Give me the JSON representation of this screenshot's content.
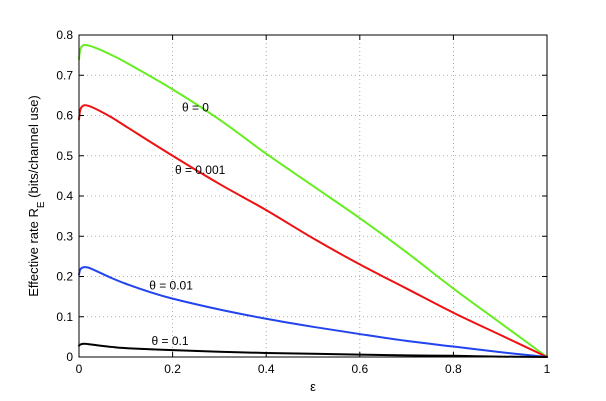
{
  "chart_data": {
    "type": "line",
    "title": "",
    "xlabel": "ε",
    "ylabel_main": "Effective rate R",
    "ylabel_sub": "E",
    "ylabel_tail": " (bits/channel use)",
    "xlim": [
      0,
      1
    ],
    "ylim": [
      0,
      0.8
    ],
    "xticks": [
      0,
      0.2,
      0.4,
      0.6,
      0.8,
      1
    ],
    "xtick_labels": [
      "0",
      "0.2",
      "0.4",
      "0.6",
      "0.8",
      "1"
    ],
    "yticks": [
      0,
      0.1,
      0.2,
      0.3,
      0.4,
      0.5,
      0.6,
      0.7,
      0.8
    ],
    "ytick_labels": [
      "0",
      "0.1",
      "0.2",
      "0.3",
      "0.4",
      "0.5",
      "0.6",
      "0.7",
      "0.8"
    ],
    "grid": true,
    "series": [
      {
        "label": "θ = 0",
        "color": "#66ee22",
        "x": [
          0,
          0.003,
          0.01,
          0.02,
          0.04,
          0.07,
          0.1,
          0.2,
          0.3,
          0.4,
          0.5,
          0.6,
          0.7,
          0.8,
          0.9,
          1.0
        ],
        "y": [
          0.74,
          0.765,
          0.775,
          0.774,
          0.766,
          0.75,
          0.732,
          0.665,
          0.59,
          0.505,
          0.425,
          0.345,
          0.26,
          0.17,
          0.085,
          0
        ]
      },
      {
        "label": "θ = 0.001",
        "color": "#ee1111",
        "x": [
          0,
          0.003,
          0.01,
          0.02,
          0.04,
          0.07,
          0.1,
          0.2,
          0.3,
          0.4,
          0.5,
          0.6,
          0.7,
          0.8,
          0.9,
          1.0
        ],
        "y": [
          0.59,
          0.615,
          0.625,
          0.624,
          0.614,
          0.595,
          0.573,
          0.5,
          0.43,
          0.365,
          0.295,
          0.23,
          0.17,
          0.11,
          0.055,
          0
        ]
      },
      {
        "label": "θ = 0.01",
        "color": "#2244ee",
        "x": [
          0,
          0.003,
          0.01,
          0.02,
          0.04,
          0.07,
          0.1,
          0.15,
          0.2,
          0.3,
          0.4,
          0.5,
          0.6,
          0.7,
          0.8,
          0.9,
          1.0
        ],
        "y": [
          0.205,
          0.218,
          0.223,
          0.222,
          0.212,
          0.196,
          0.182,
          0.162,
          0.145,
          0.118,
          0.095,
          0.075,
          0.057,
          0.04,
          0.026,
          0.012,
          0
        ]
      },
      {
        "label": "θ = 0.1",
        "color": "#000000",
        "x": [
          0,
          0.003,
          0.01,
          0.02,
          0.04,
          0.07,
          0.1,
          0.2,
          0.3,
          0.4,
          0.5,
          0.6,
          0.7,
          0.8,
          0.9,
          1.0
        ],
        "y": [
          0.028,
          0.031,
          0.033,
          0.032,
          0.029,
          0.025,
          0.022,
          0.017,
          0.013,
          0.01,
          0.008,
          0.006,
          0.004,
          0.003,
          0.001,
          0
        ]
      }
    ],
    "annotations": [
      {
        "text": "θ = 0",
        "x": 0.22,
        "y": 0.61
      },
      {
        "text": "θ = 0.001",
        "x": 0.205,
        "y": 0.455
      },
      {
        "text": "θ = 0.01",
        "x": 0.15,
        "y": 0.168
      },
      {
        "text": "θ = 0.1",
        "x": 0.155,
        "y": 0.03
      }
    ]
  }
}
